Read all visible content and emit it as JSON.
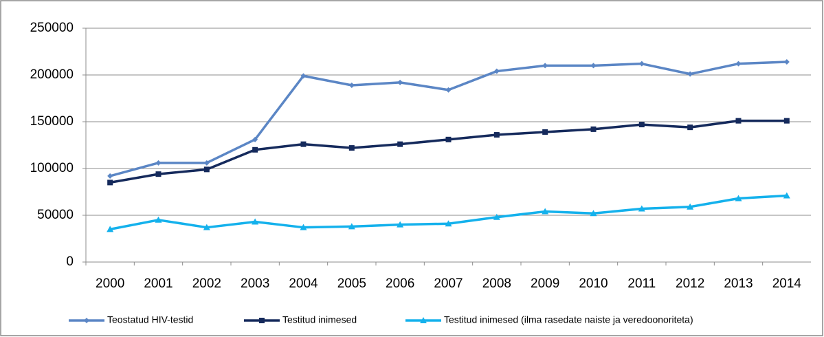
{
  "chart_data": {
    "type": "line",
    "categories": [
      "2000",
      "2001",
      "2002",
      "2003",
      "2004",
      "2005",
      "2006",
      "2007",
      "2008",
      "2009",
      "2010",
      "2011",
      "2012",
      "2013",
      "2014"
    ],
    "series": [
      {
        "name": "Teostatud HIV-testid",
        "color": "#5b86c5",
        "marker": "diamond",
        "values": [
          92000,
          106000,
          106000,
          131000,
          199000,
          189000,
          192000,
          184000,
          204000,
          210000,
          210000,
          212000,
          201000,
          212000,
          214000
        ]
      },
      {
        "name": "Testitud inimesed",
        "color": "#152a5c",
        "marker": "square",
        "values": [
          85000,
          94000,
          99000,
          120000,
          126000,
          122000,
          126000,
          131000,
          136000,
          139000,
          142000,
          147000,
          144000,
          151000,
          151000
        ]
      },
      {
        "name": "Testitud inimesed (ilma rasedate naiste ja veredoonoriteta)",
        "color": "#14b1ec",
        "marker": "triangle",
        "values": [
          35000,
          45000,
          37000,
          43000,
          37000,
          38000,
          40000,
          41000,
          48000,
          54000,
          52000,
          57000,
          59000,
          68000,
          71000
        ]
      }
    ],
    "ylim": [
      0,
      250000
    ],
    "yticks": [
      0,
      50000,
      100000,
      150000,
      200000,
      250000
    ],
    "grid": true,
    "legend": "bottom"
  }
}
